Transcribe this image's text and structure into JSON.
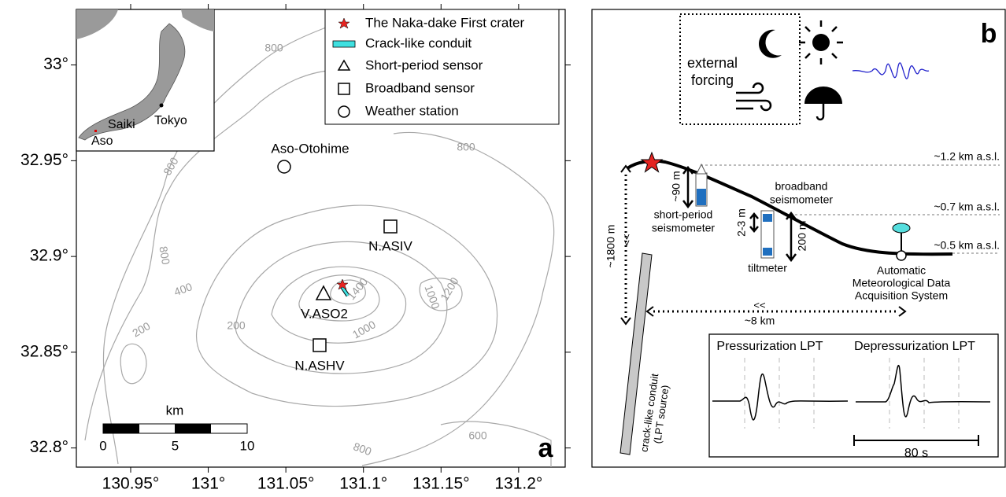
{
  "panel_a": {
    "label": "a",
    "xlim": [
      130.915,
      131.23
    ],
    "ylim": [
      32.79,
      33.029
    ],
    "xticks": [
      {
        "value": 130.95,
        "label": "130.95°"
      },
      {
        "value": 131,
        "label": "131°"
      },
      {
        "value": 131.05,
        "label": "131.05°"
      },
      {
        "value": 131.1,
        "label": "131.1°"
      },
      {
        "value": 131.15,
        "label": "131.15°"
      },
      {
        "value": 131.2,
        "label": "131.2°"
      }
    ],
    "yticks": [
      {
        "value": 33,
        "label": "33°"
      },
      {
        "value": 32.95,
        "label": "32.95°"
      },
      {
        "value": 32.9,
        "label": "32.9°"
      },
      {
        "value": 32.85,
        "label": "32.85°"
      },
      {
        "value": 32.8,
        "label": "32.8°"
      }
    ],
    "legend": [
      "The Naka-dake First crater",
      "Crack-like conduit",
      "Short-period sensor",
      "Broadband sensor",
      "Weather station"
    ],
    "stations": [
      "Aso-Otohime",
      "N.ASIV",
      "V.ASO2",
      "N.ASHV"
    ],
    "contour_labels": [
      800,
      800,
      800,
      800,
      400,
      200,
      200,
      1400,
      1000,
      1000,
      1200,
      600,
      800
    ],
    "scale_bar": {
      "unit": "km",
      "ticks": [
        0,
        5,
        10
      ]
    },
    "inset_labels": [
      "Tokyo",
      "Saiki",
      "Aso"
    ]
  },
  "panel_b": {
    "label": "b",
    "forcing": [
      "external",
      "forcing"
    ],
    "levels": [
      "~1.2 km a.s.l.",
      "~0.7 km a.s.l.",
      "~0.5 km a.s.l."
    ],
    "short_period": [
      "short-period",
      "seismometer"
    ],
    "short_period_depth": "~90 m",
    "broadband": [
      "broadband",
      "seismometer"
    ],
    "tilt_length": "2-3 m",
    "tilt_depth": "200 m",
    "tiltmeter": "tiltmeter",
    "weather": [
      "Automatic",
      "Meteorological Data",
      "Acquisition System"
    ],
    "conduit_depth": "~1800 m",
    "not_to_scale": [
      "<<",
      "<<"
    ],
    "distance": "~8 km",
    "conduit": [
      "crack-like conduit",
      "(LPT source)"
    ],
    "waveforms": [
      "Pressurization LPT",
      "Depressurization LPT"
    ],
    "time_scale": "80 s"
  }
}
